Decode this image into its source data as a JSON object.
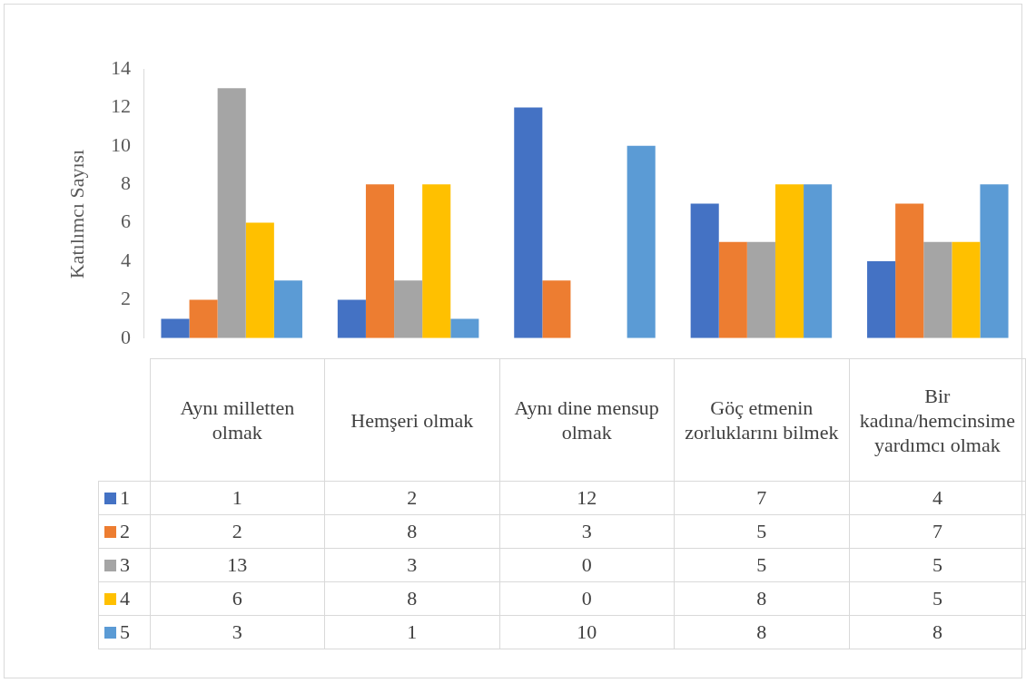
{
  "chart_data": {
    "type": "bar",
    "ylabel": "Katılımcı Sayısı",
    "categories": [
      "Aynı milletten olmak",
      "Hemşeri olmak",
      "Aynı dine mensup olmak",
      "Göç etmenin zorluklarını bilmek",
      "Bir kadına/hemcinsime yardımcı olmak"
    ],
    "series": [
      {
        "name": "1",
        "color": "#4472c4",
        "values": [
          1,
          2,
          12,
          7,
          4
        ]
      },
      {
        "name": "2",
        "color": "#ed7d31",
        "values": [
          2,
          8,
          3,
          5,
          7
        ]
      },
      {
        "name": "3",
        "color": "#a5a5a5",
        "values": [
          13,
          3,
          0,
          5,
          5
        ]
      },
      {
        "name": "4",
        "color": "#ffc000",
        "values": [
          6,
          8,
          0,
          8,
          5
        ]
      },
      {
        "name": "5",
        "color": "#5b9bd5",
        "values": [
          3,
          1,
          10,
          8,
          8
        ]
      }
    ],
    "ylim": [
      0,
      14
    ],
    "yticks": [
      0,
      2,
      4,
      6,
      8,
      10,
      12,
      14
    ],
    "grid": false,
    "legend": "bottom",
    "data_labels": true
  }
}
